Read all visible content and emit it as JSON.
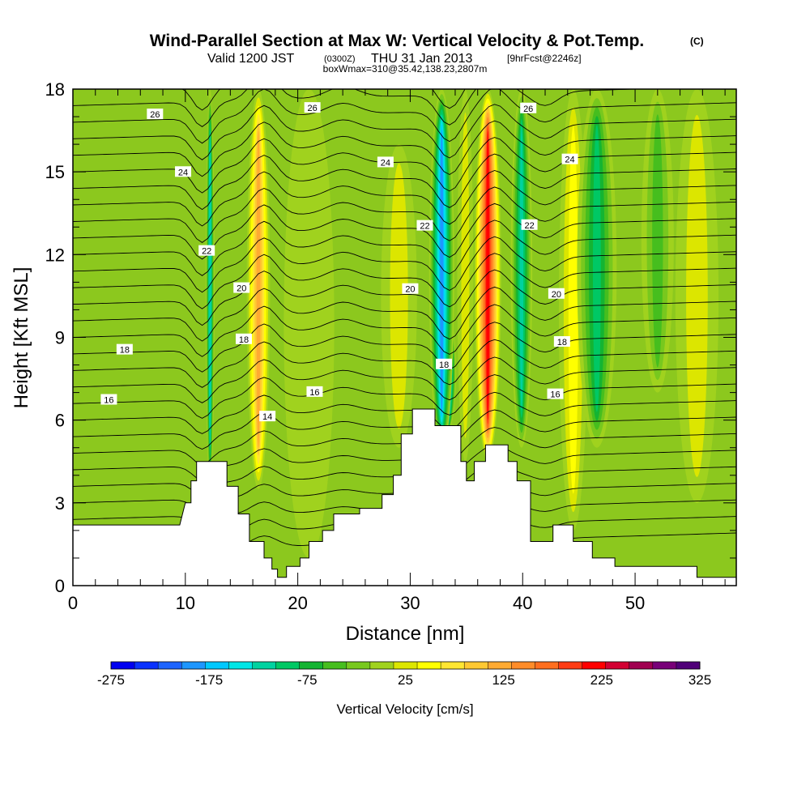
{
  "chart_data": {
    "type": "heatmap",
    "title": "Wind-Parallel Section at Max W: Vertical Velocity & Pot.Temp.",
    "title_mark": "(C)",
    "subtitle": {
      "valid": "Valid 1200 JST",
      "utc": "(0300Z)",
      "date": "THU 31 Jan 2013",
      "fcst": "[9hrFcst@2246z]"
    },
    "subtitle2": "boxWmax=310@35.42,138.23,2807m",
    "xlabel": "Distance [nm]",
    "ylabel": "Height [Kft MSL]",
    "xlim": [
      0,
      59
    ],
    "ylim": [
      0,
      18
    ],
    "xticks": [
      0,
      10,
      20,
      30,
      40,
      50
    ],
    "yticks": [
      0,
      3,
      6,
      9,
      12,
      15,
      18
    ],
    "colorbar": {
      "label": "Vertical Velocity [cm/s]",
      "min": -275,
      "max": 325,
      "step": 25,
      "tick_values": [
        -275,
        -175,
        -75,
        25,
        125,
        225,
        325
      ],
      "colors": [
        "#0000f0",
        "#0a32ff",
        "#1e64ff",
        "#1e96ff",
        "#00c8ff",
        "#00e6e6",
        "#00d2a0",
        "#00c864",
        "#14b432",
        "#46be1e",
        "#78c81e",
        "#a0d21e",
        "#dce600",
        "#ffff00",
        "#ffe632",
        "#ffc832",
        "#ffaa32",
        "#ff8c28",
        "#ff6e1e",
        "#ff3c14",
        "#ff0000",
        "#d20032",
        "#a00050",
        "#780078",
        "#500078"
      ]
    },
    "velocity_columns": [
      {
        "x": 12.2,
        "w": 0.25,
        "value": -110,
        "y0": 3.5,
        "y1": 18
      },
      {
        "x": 16.5,
        "w": 0.65,
        "value": 140,
        "y0": 3.5,
        "y1": 18
      },
      {
        "x": 21.0,
        "w": 1.4,
        "value": 10,
        "y0": 1.0,
        "y1": 18
      },
      {
        "x": 29.0,
        "w": 1.0,
        "value": 40,
        "y0": 5.0,
        "y1": 16
      },
      {
        "x": 33.2,
        "w": 0.55,
        "value": -275,
        "y0": 5.5,
        "y1": 10
      },
      {
        "x": 32.8,
        "w": 0.7,
        "value": -180,
        "y0": 4.8,
        "y1": 18
      },
      {
        "x": 34.9,
        "w": 0.45,
        "value": 40,
        "y0": 4.5,
        "y1": 18
      },
      {
        "x": 36.9,
        "w": 0.75,
        "value": 230,
        "y0": 4.5,
        "y1": 18
      },
      {
        "x": 39.9,
        "w": 0.6,
        "value": -120,
        "y0": 5.0,
        "y1": 18
      },
      {
        "x": 44.5,
        "w": 0.8,
        "value": 60,
        "y0": 2.0,
        "y1": 18
      },
      {
        "x": 46.6,
        "w": 1.1,
        "value": -90,
        "y0": 5.0,
        "y1": 18
      },
      {
        "x": 52.0,
        "w": 0.9,
        "value": -40,
        "y0": 7.0,
        "y1": 18
      },
      {
        "x": 55.5,
        "w": 1.2,
        "value": 30,
        "y0": 3.0,
        "y1": 18
      }
    ],
    "terrain": [
      [
        0,
        2.2
      ],
      [
        9.5,
        2.2
      ],
      [
        10,
        3.0
      ],
      [
        10.5,
        3.0
      ],
      [
        10.5,
        3.8
      ],
      [
        11,
        3.8
      ],
      [
        11,
        4.5
      ],
      [
        13.7,
        4.5
      ],
      [
        13.7,
        3.6
      ],
      [
        14.7,
        3.6
      ],
      [
        14.7,
        2.6
      ],
      [
        15.7,
        2.6
      ],
      [
        15.7,
        1.6
      ],
      [
        17,
        1.6
      ],
      [
        17,
        1.0
      ],
      [
        17.7,
        1.0
      ],
      [
        17.7,
        0.6
      ],
      [
        18.2,
        0.6
      ],
      [
        18.2,
        0.3
      ],
      [
        19,
        0.3
      ],
      [
        19,
        0.7
      ],
      [
        20.2,
        0.7
      ],
      [
        20.2,
        1.0
      ],
      [
        21,
        1.0
      ],
      [
        21,
        1.6
      ],
      [
        22.2,
        1.6
      ],
      [
        22.2,
        2.0
      ],
      [
        23.2,
        2.0
      ],
      [
        23.2,
        2.6
      ],
      [
        25.5,
        2.6
      ],
      [
        25.5,
        2.8
      ],
      [
        27.5,
        2.8
      ],
      [
        27.5,
        3.3
      ],
      [
        28.5,
        3.3
      ],
      [
        28.5,
        4.0
      ],
      [
        29.2,
        4.0
      ],
      [
        29.2,
        5.5
      ],
      [
        30.2,
        5.5
      ],
      [
        30.2,
        6.4
      ],
      [
        32.2,
        6.4
      ],
      [
        32.2,
        5.8
      ],
      [
        34.5,
        5.8
      ],
      [
        34.5,
        4.5
      ],
      [
        35,
        4.5
      ],
      [
        35,
        3.8
      ],
      [
        35.7,
        3.8
      ],
      [
        35.7,
        4.5
      ],
      [
        36.7,
        4.5
      ],
      [
        36.7,
        5.1
      ],
      [
        38.7,
        5.1
      ],
      [
        38.7,
        4.5
      ],
      [
        39.5,
        4.5
      ],
      [
        39.5,
        3.8
      ],
      [
        40.7,
        3.8
      ],
      [
        40.7,
        1.6
      ],
      [
        42.7,
        1.6
      ],
      [
        42.7,
        2.2
      ],
      [
        44.5,
        2.2
      ],
      [
        44.5,
        1.6
      ],
      [
        46.2,
        1.6
      ],
      [
        46.2,
        1.0
      ],
      [
        48.2,
        1.0
      ],
      [
        48.2,
        0.7
      ],
      [
        55.5,
        0.7
      ],
      [
        55.5,
        0.3
      ],
      [
        59,
        0.3
      ]
    ],
    "isentropes": [
      {
        "value": 26,
        "y_left": 17.0,
        "labels": [
          {
            "x": 7.3
          },
          {
            "x": 21.3
          },
          {
            "x": 40.5
          }
        ]
      },
      {
        "value": 24,
        "y_left": 15.0,
        "labels": [
          {
            "x": 9.8
          },
          {
            "x": 27.8
          },
          {
            "x": 44.2
          }
        ]
      },
      {
        "value": 22,
        "y_left": 12.8,
        "labels": [
          {
            "x": 11.9
          },
          {
            "x": 31.3
          },
          {
            "x": 40.6
          }
        ]
      },
      {
        "value": 20,
        "y_left": 10.4,
        "labels": [
          {
            "x": 15.0
          },
          {
            "x": 30.0
          },
          {
            "x": 43.0
          }
        ]
      },
      {
        "value": 18,
        "y_left": 8.5,
        "labels": [
          {
            "x": 4.6
          },
          {
            "x": 15.2
          },
          {
            "x": 33.0
          },
          {
            "x": 43.5
          }
        ]
      },
      {
        "value": 16,
        "y_left": 6.7,
        "labels": [
          {
            "x": 3.2
          },
          {
            "x": 21.5
          },
          {
            "x": 42.9
          }
        ]
      },
      {
        "value": 14,
        "y_left": 5.3,
        "labels": [
          {
            "x": 17.3
          }
        ]
      }
    ]
  }
}
